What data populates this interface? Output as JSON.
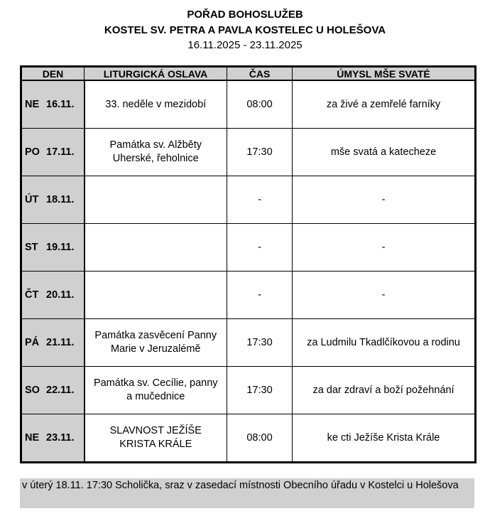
{
  "header": {
    "title": "POŘAD BOHOSLUŽEB",
    "church": "KOSTEL SV. PETRA A PAVLA KOSTELEC U HOLEŠOVA",
    "date_range": "16.11.2025 - 23.11.2025"
  },
  "table": {
    "columns": [
      "DEN",
      "LITURGICKÁ OSLAVA",
      "ČAS",
      "ÚMYSL MŠE SVATÉ"
    ],
    "rows": [
      {
        "day": "NE",
        "date": "16.11.",
        "celebration": [
          "33. neděle v mezidobí"
        ],
        "time": "08:00",
        "intention": "za živé a zemřelé farníky"
      },
      {
        "day": "PO",
        "date": "17.11.",
        "celebration": [
          "Památka sv. Alžběty",
          "Uherské, řeholnice"
        ],
        "time": "17:30",
        "intention": "mše svatá a katecheze"
      },
      {
        "day": "ÚT",
        "date": "18.11.",
        "celebration": [
          ""
        ],
        "time": "-",
        "intention": "-"
      },
      {
        "day": "ST",
        "date": "19.11.",
        "celebration": [
          ""
        ],
        "time": "-",
        "intention": "-"
      },
      {
        "day": "ČT",
        "date": "20.11.",
        "celebration": [
          ""
        ],
        "time": "-",
        "intention": "-"
      },
      {
        "day": "PÁ",
        "date": "21.11.",
        "celebration": [
          "Památka zasvěcení Panny",
          "Marie v Jeruzalémě"
        ],
        "time": "17:30",
        "intention": "za Ludmilu Tkadlčíkovou a rodinu"
      },
      {
        "day": "SO",
        "date": "22.11.",
        "celebration": [
          "Památka sv. Cecílie, panny",
          "a mučednice"
        ],
        "time": "17:30",
        "intention": "za dar zdraví a boží požehnání"
      },
      {
        "day": "NE",
        "date": "23.11.",
        "celebration": [
          "SLAVNOST JEŽÍŠE",
          "KRISTA KRÁLE"
        ],
        "time": "08:00",
        "intention": "ke cti Ježíše Krista Krále"
      }
    ]
  },
  "note": "v úterý 18.11. 17:30 Scholička, sraz v zasedací místnosti Obecního úřadu v Kostelci u Holešova",
  "colors": {
    "shading": "#d0d0d0"
  }
}
